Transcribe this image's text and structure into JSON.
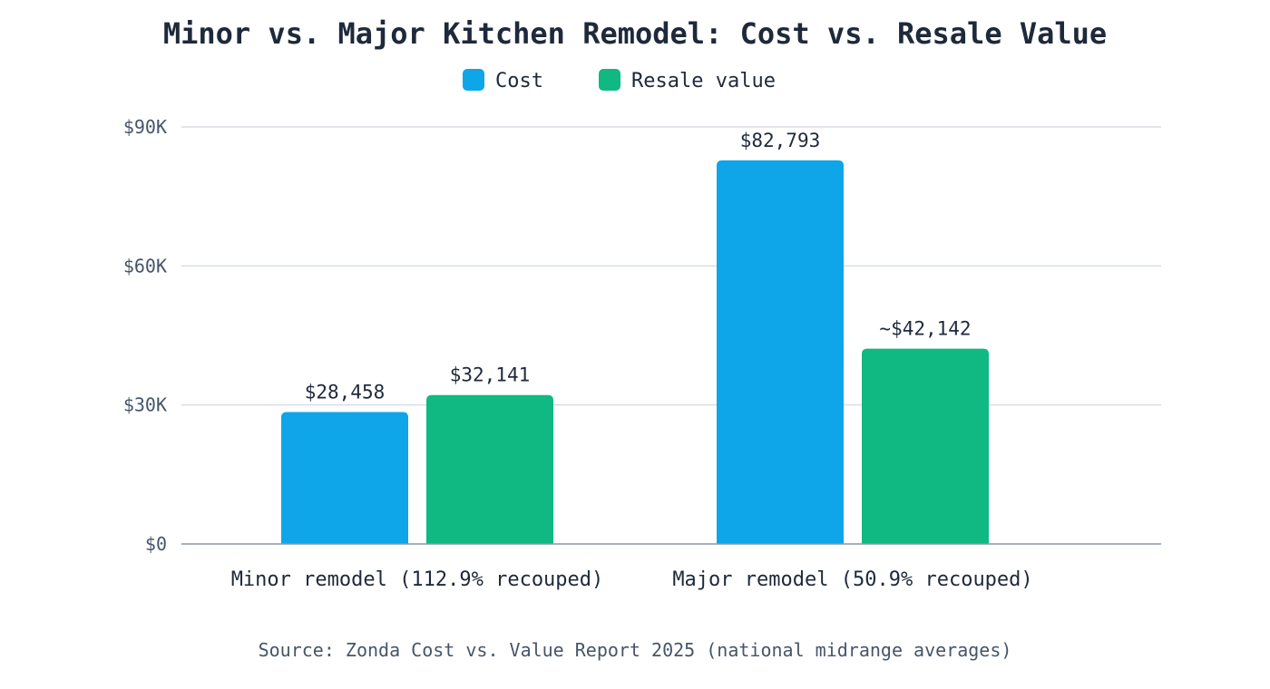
{
  "chart_data": {
    "type": "bar",
    "title": "Minor vs. Major Kitchen Remodel: Cost vs. Resale Value",
    "categories": [
      "Minor remodel (112.9% recouped)",
      "Major remodel (50.9% recouped)"
    ],
    "series": [
      {
        "name": "Cost",
        "color": "#0ea5e9",
        "values": [
          28458,
          82793
        ],
        "labels": [
          "$28,458",
          "$82,793"
        ]
      },
      {
        "name": "Resale value",
        "color": "#10b981",
        "values": [
          32141,
          42142
        ],
        "labels": [
          "$32,141",
          "~$42,142"
        ]
      }
    ],
    "yticks": [
      {
        "value": 0,
        "label": "$0"
      },
      {
        "value": 30000,
        "label": "$30K"
      },
      {
        "value": 60000,
        "label": "$60K"
      },
      {
        "value": 90000,
        "label": "$90K"
      }
    ],
    "ylim": [
      0,
      90000
    ],
    "xlabel": "",
    "ylabel": "",
    "grid": true,
    "legend_position": "top-center",
    "source": "Source: Zonda Cost vs. Value Report 2025 (national midrange averages)"
  }
}
